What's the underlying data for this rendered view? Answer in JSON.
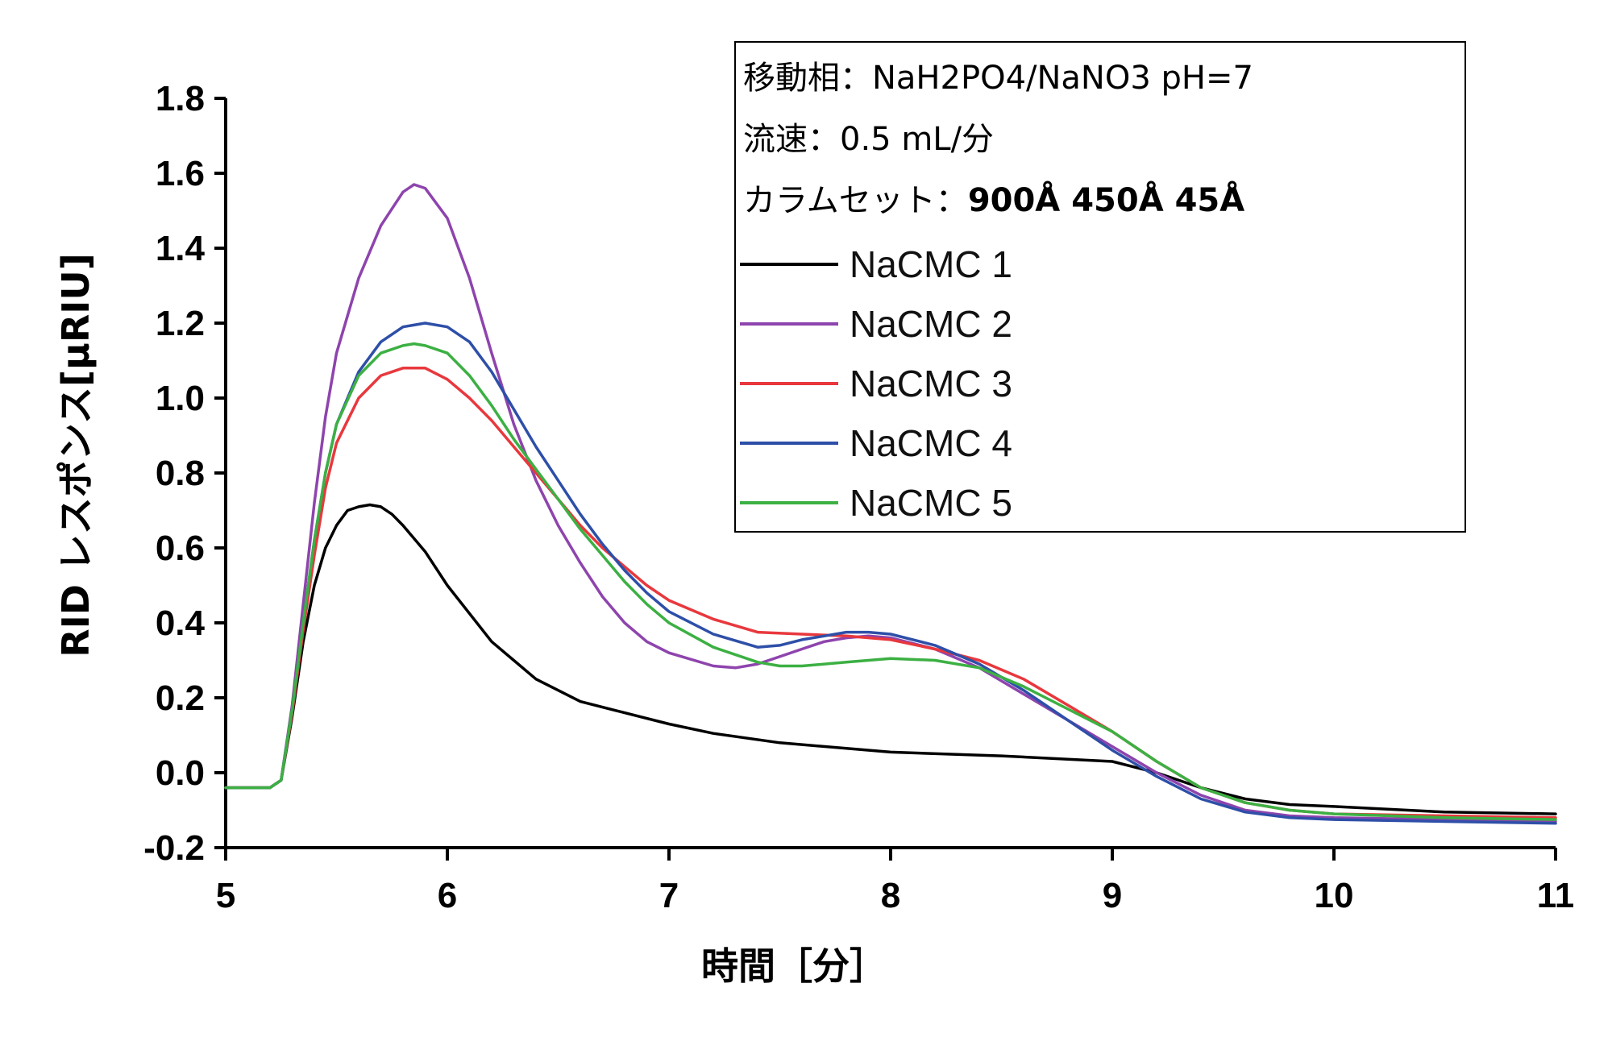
{
  "chart_data": {
    "type": "line",
    "xlabel": "時間［分］",
    "ylabel": "RID レスポンス[µRIU]",
    "xlim": [
      5,
      11
    ],
    "ylim": [
      -0.2,
      1.8
    ],
    "x_ticks": [
      "5",
      "6",
      "7",
      "8",
      "9",
      "10",
      "11"
    ],
    "y_ticks": [
      "-0.2",
      "0.0",
      "0.2",
      "0.4",
      "0.6",
      "0.8",
      "1.0",
      "1.2",
      "1.4",
      "1.6",
      "1.8"
    ],
    "grid": false,
    "legend_position": "top-right",
    "conditions": [
      {
        "label": "移動相：",
        "value": "NaH2PO4/NaNO3 pH=7",
        "bold": false
      },
      {
        "label": "流速：",
        "value": "0.5 mL/分",
        "bold": false
      },
      {
        "label": "カラムセット：",
        "value": "900Å 450Å 45Å",
        "bold": true
      }
    ],
    "series": [
      {
        "name": "NaCMC 1",
        "color": "#000000",
        "points": [
          [
            5.0,
            -0.04
          ],
          [
            5.2,
            -0.04
          ],
          [
            5.25,
            -0.02
          ],
          [
            5.3,
            0.15
          ],
          [
            5.35,
            0.35
          ],
          [
            5.4,
            0.5
          ],
          [
            5.45,
            0.6
          ],
          [
            5.5,
            0.66
          ],
          [
            5.55,
            0.7
          ],
          [
            5.6,
            0.71
          ],
          [
            5.65,
            0.715
          ],
          [
            5.7,
            0.71
          ],
          [
            5.75,
            0.69
          ],
          [
            5.8,
            0.66
          ],
          [
            5.9,
            0.59
          ],
          [
            6.0,
            0.5
          ],
          [
            6.2,
            0.35
          ],
          [
            6.4,
            0.25
          ],
          [
            6.6,
            0.19
          ],
          [
            6.8,
            0.16
          ],
          [
            7.0,
            0.13
          ],
          [
            7.2,
            0.105
          ],
          [
            7.5,
            0.08
          ],
          [
            8.0,
            0.055
          ],
          [
            8.5,
            0.045
          ],
          [
            9.0,
            0.03
          ],
          [
            9.2,
            0.0
          ],
          [
            9.4,
            -0.04
          ],
          [
            9.6,
            -0.07
          ],
          [
            9.8,
            -0.085
          ],
          [
            10.0,
            -0.09
          ],
          [
            10.5,
            -0.105
          ],
          [
            11.0,
            -0.11
          ]
        ]
      },
      {
        "name": "NaCMC 2",
        "color": "#8e44ad",
        "points": [
          [
            5.0,
            -0.04
          ],
          [
            5.2,
            -0.04
          ],
          [
            5.25,
            -0.02
          ],
          [
            5.3,
            0.18
          ],
          [
            5.35,
            0.45
          ],
          [
            5.4,
            0.72
          ],
          [
            5.45,
            0.95
          ],
          [
            5.5,
            1.12
          ],
          [
            5.6,
            1.32
          ],
          [
            5.7,
            1.46
          ],
          [
            5.8,
            1.55
          ],
          [
            5.85,
            1.57
          ],
          [
            5.9,
            1.56
          ],
          [
            6.0,
            1.48
          ],
          [
            6.1,
            1.32
          ],
          [
            6.2,
            1.12
          ],
          [
            6.3,
            0.93
          ],
          [
            6.4,
            0.78
          ],
          [
            6.5,
            0.66
          ],
          [
            6.6,
            0.56
          ],
          [
            6.7,
            0.47
          ],
          [
            6.8,
            0.4
          ],
          [
            6.9,
            0.35
          ],
          [
            7.0,
            0.32
          ],
          [
            7.2,
            0.285
          ],
          [
            7.3,
            0.28
          ],
          [
            7.4,
            0.29
          ],
          [
            7.5,
            0.31
          ],
          [
            7.6,
            0.33
          ],
          [
            7.7,
            0.35
          ],
          [
            7.8,
            0.36
          ],
          [
            7.9,
            0.365
          ],
          [
            8.0,
            0.36
          ],
          [
            8.2,
            0.33
          ],
          [
            8.4,
            0.28
          ],
          [
            8.6,
            0.21
          ],
          [
            8.8,
            0.14
          ],
          [
            9.0,
            0.07
          ],
          [
            9.2,
            0.0
          ],
          [
            9.4,
            -0.06
          ],
          [
            9.6,
            -0.1
          ],
          [
            9.8,
            -0.115
          ],
          [
            10.0,
            -0.12
          ],
          [
            10.5,
            -0.125
          ],
          [
            11.0,
            -0.13
          ]
        ]
      },
      {
        "name": "NaCMC 3",
        "color": "#e8383d",
        "points": [
          [
            5.0,
            -0.04
          ],
          [
            5.2,
            -0.04
          ],
          [
            5.25,
            -0.02
          ],
          [
            5.3,
            0.16
          ],
          [
            5.35,
            0.38
          ],
          [
            5.4,
            0.58
          ],
          [
            5.45,
            0.76
          ],
          [
            5.5,
            0.88
          ],
          [
            5.6,
            1.0
          ],
          [
            5.7,
            1.06
          ],
          [
            5.8,
            1.08
          ],
          [
            5.9,
            1.08
          ],
          [
            6.0,
            1.05
          ],
          [
            6.1,
            1.0
          ],
          [
            6.2,
            0.94
          ],
          [
            6.3,
            0.87
          ],
          [
            6.4,
            0.8
          ],
          [
            6.5,
            0.73
          ],
          [
            6.6,
            0.66
          ],
          [
            6.7,
            0.6
          ],
          [
            6.8,
            0.55
          ],
          [
            6.9,
            0.5
          ],
          [
            7.0,
            0.46
          ],
          [
            7.2,
            0.41
          ],
          [
            7.4,
            0.375
          ],
          [
            7.6,
            0.37
          ],
          [
            7.8,
            0.365
          ],
          [
            8.0,
            0.355
          ],
          [
            8.2,
            0.33
          ],
          [
            8.4,
            0.3
          ],
          [
            8.6,
            0.25
          ],
          [
            8.8,
            0.18
          ],
          [
            9.0,
            0.11
          ],
          [
            9.2,
            0.03
          ],
          [
            9.4,
            -0.04
          ],
          [
            9.6,
            -0.08
          ],
          [
            9.8,
            -0.1
          ],
          [
            10.0,
            -0.11
          ],
          [
            10.5,
            -0.115
          ],
          [
            11.0,
            -0.12
          ]
        ]
      },
      {
        "name": "NaCMC 4",
        "color": "#2e4fa8",
        "points": [
          [
            5.0,
            -0.04
          ],
          [
            5.2,
            -0.04
          ],
          [
            5.25,
            -0.02
          ],
          [
            5.3,
            0.17
          ],
          [
            5.35,
            0.4
          ],
          [
            5.4,
            0.62
          ],
          [
            5.45,
            0.8
          ],
          [
            5.5,
            0.93
          ],
          [
            5.6,
            1.07
          ],
          [
            5.7,
            1.15
          ],
          [
            5.8,
            1.19
          ],
          [
            5.9,
            1.2
          ],
          [
            6.0,
            1.19
          ],
          [
            6.1,
            1.15
          ],
          [
            6.2,
            1.07
          ],
          [
            6.3,
            0.97
          ],
          [
            6.4,
            0.87
          ],
          [
            6.5,
            0.78
          ],
          [
            6.6,
            0.69
          ],
          [
            6.7,
            0.61
          ],
          [
            6.8,
            0.54
          ],
          [
            6.9,
            0.48
          ],
          [
            7.0,
            0.43
          ],
          [
            7.2,
            0.37
          ],
          [
            7.4,
            0.335
          ],
          [
            7.5,
            0.34
          ],
          [
            7.6,
            0.355
          ],
          [
            7.7,
            0.365
          ],
          [
            7.8,
            0.375
          ],
          [
            7.9,
            0.375
          ],
          [
            8.0,
            0.37
          ],
          [
            8.2,
            0.34
          ],
          [
            8.4,
            0.29
          ],
          [
            8.6,
            0.22
          ],
          [
            8.8,
            0.14
          ],
          [
            9.0,
            0.06
          ],
          [
            9.2,
            -0.01
          ],
          [
            9.4,
            -0.07
          ],
          [
            9.6,
            -0.105
          ],
          [
            9.8,
            -0.12
          ],
          [
            10.0,
            -0.125
          ],
          [
            10.5,
            -0.13
          ],
          [
            11.0,
            -0.135
          ]
        ]
      },
      {
        "name": "NaCMC 5",
        "color": "#3cb043",
        "points": [
          [
            5.0,
            -0.04
          ],
          [
            5.2,
            -0.04
          ],
          [
            5.25,
            -0.02
          ],
          [
            5.3,
            0.17
          ],
          [
            5.35,
            0.4
          ],
          [
            5.4,
            0.62
          ],
          [
            5.45,
            0.8
          ],
          [
            5.5,
            0.93
          ],
          [
            5.6,
            1.06
          ],
          [
            5.7,
            1.12
          ],
          [
            5.8,
            1.14
          ],
          [
            5.85,
            1.145
          ],
          [
            5.9,
            1.14
          ],
          [
            6.0,
            1.12
          ],
          [
            6.1,
            1.06
          ],
          [
            6.2,
            0.98
          ],
          [
            6.3,
            0.89
          ],
          [
            6.4,
            0.81
          ],
          [
            6.5,
            0.73
          ],
          [
            6.6,
            0.65
          ],
          [
            6.7,
            0.58
          ],
          [
            6.8,
            0.51
          ],
          [
            6.9,
            0.45
          ],
          [
            7.0,
            0.4
          ],
          [
            7.2,
            0.335
          ],
          [
            7.4,
            0.295
          ],
          [
            7.5,
            0.285
          ],
          [
            7.6,
            0.285
          ],
          [
            7.8,
            0.295
          ],
          [
            8.0,
            0.305
          ],
          [
            8.2,
            0.3
          ],
          [
            8.4,
            0.28
          ],
          [
            8.6,
            0.23
          ],
          [
            8.8,
            0.17
          ],
          [
            9.0,
            0.11
          ],
          [
            9.2,
            0.03
          ],
          [
            9.4,
            -0.04
          ],
          [
            9.6,
            -0.08
          ],
          [
            9.8,
            -0.1
          ],
          [
            10.0,
            -0.11
          ],
          [
            10.5,
            -0.12
          ],
          [
            11.0,
            -0.125
          ]
        ]
      }
    ]
  }
}
